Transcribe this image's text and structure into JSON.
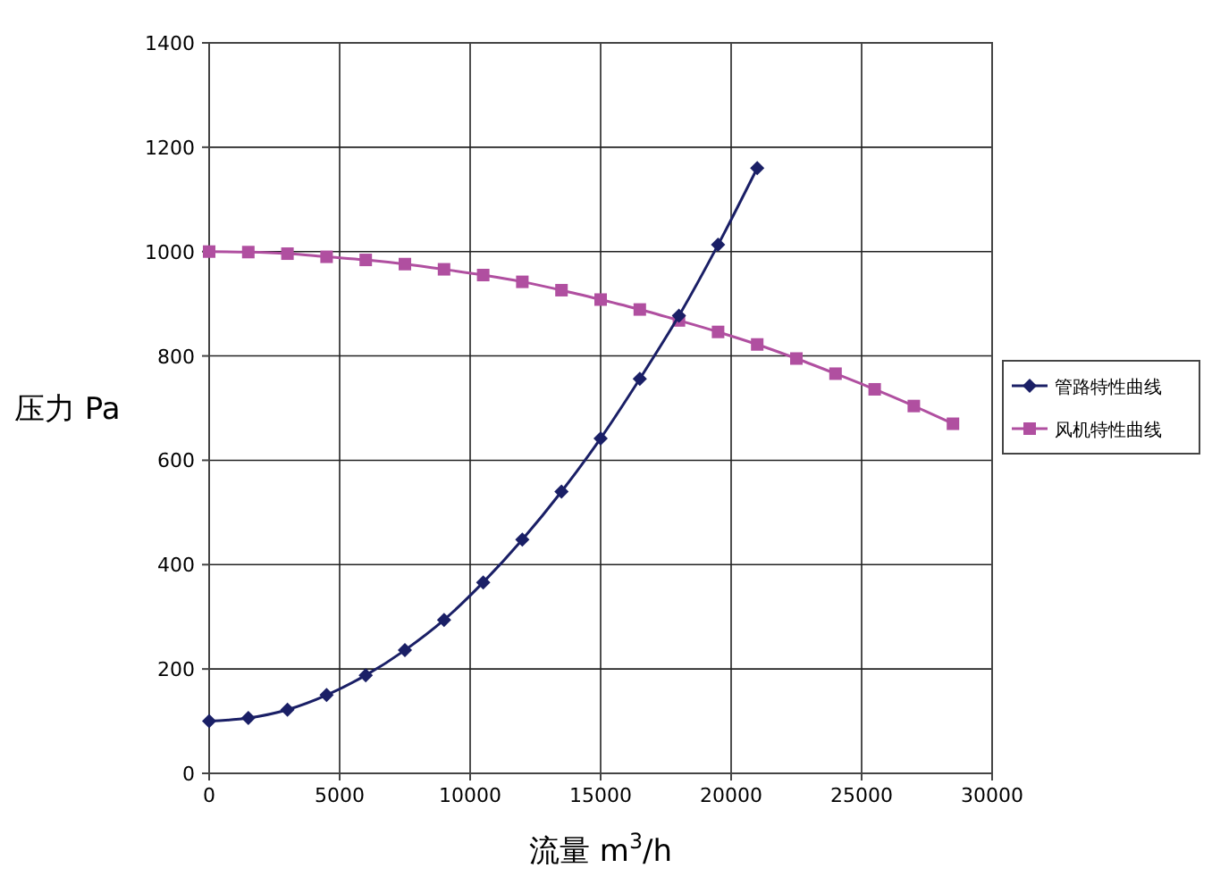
{
  "chart_data": {
    "type": "line",
    "xlabel": "流量 m$^{3}$/h",
    "ylabel": "压力 Pa",
    "xlim": [
      0,
      30000
    ],
    "xticks": [
      0,
      5000,
      10000,
      15000,
      20000,
      25000,
      30000
    ],
    "ylim": [
      0,
      1400
    ],
    "yticks": [
      0,
      200,
      400,
      600,
      800,
      1000,
      1200,
      1400
    ],
    "grid": true,
    "legend": "right",
    "series": [
      {
        "name": "管路特性曲线",
        "color": "#1a1f66",
        "marker": "diamond",
        "x": [
          0,
          1500,
          3000,
          4500,
          6000,
          7500,
          9000,
          10500,
          12000,
          13500,
          15000,
          16500,
          18000,
          19500,
          21000
        ],
        "values": [
          100,
          106,
          122,
          150,
          188,
          236,
          294,
          366,
          448,
          540,
          642,
          756,
          877,
          1013,
          1160
        ]
      },
      {
        "name": "风机特性曲线",
        "color": "#b04fa0",
        "marker": "square",
        "x": [
          0,
          1500,
          3000,
          4500,
          6000,
          7500,
          9000,
          10500,
          12000,
          13500,
          15000,
          16500,
          18000,
          19500,
          21000,
          22500,
          24000,
          25500,
          27000,
          28500
        ],
        "values": [
          1000,
          999,
          996,
          990,
          984,
          976,
          966,
          955,
          942,
          926,
          908,
          889,
          868,
          846,
          822,
          795,
          766,
          736,
          704,
          670
        ]
      }
    ]
  }
}
